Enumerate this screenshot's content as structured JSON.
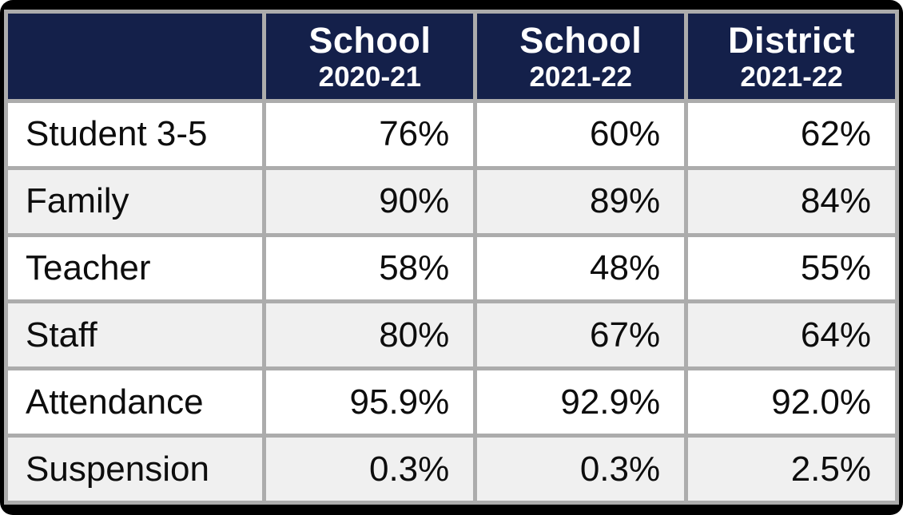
{
  "chart_data": {
    "type": "table",
    "columns": [
      {
        "label": "",
        "sublabel": ""
      },
      {
        "label": "School",
        "sublabel": "2020-21"
      },
      {
        "label": "School",
        "sublabel": "2021-22"
      },
      {
        "label": "District",
        "sublabel": "2021-22"
      }
    ],
    "rows": [
      {
        "label": "Student 3-5",
        "values": [
          "76%",
          "60%",
          "62%"
        ]
      },
      {
        "label": "Family",
        "values": [
          "90%",
          "89%",
          "84%"
        ]
      },
      {
        "label": "Teacher",
        "values": [
          "58%",
          "48%",
          "55%"
        ]
      },
      {
        "label": "Staff",
        "values": [
          "80%",
          "67%",
          "64%"
        ]
      },
      {
        "label": "Attendance",
        "values": [
          "95.9%",
          "92.9%",
          "92.0%"
        ]
      },
      {
        "label": "Suspension",
        "values": [
          "0.3%",
          "0.3%",
          "2.5%"
        ]
      }
    ],
    "layout_hints": {
      "header_position": "top",
      "alternating_rows": true,
      "value_alignment": "right"
    }
  },
  "colors": {
    "header_bg": "#14204A",
    "header_text": "#FFFFFF",
    "row_bg": "#FFFFFF",
    "row_alt_bg": "#F0F0F0",
    "grid_border": "#ACACAC",
    "outer_frame": "#000000",
    "body_text": "#0D0D0D"
  }
}
